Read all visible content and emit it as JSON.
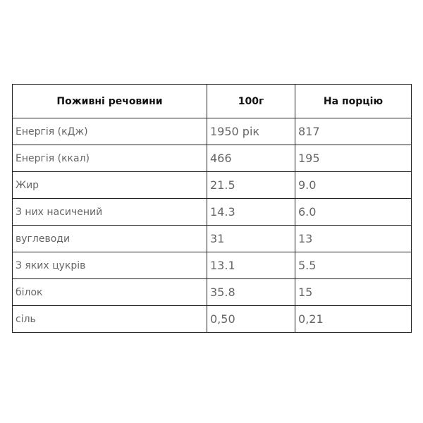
{
  "table": {
    "headers": [
      "Поживні речовини",
      "100г",
      "На порцію"
    ],
    "rows": [
      [
        "Енергія (кДж)",
        "1950 рік",
        "817"
      ],
      [
        "Енергія (ккал)",
        "466",
        "195"
      ],
      [
        "Жир",
        "21.5",
        "9.0"
      ],
      [
        "З них насичений",
        "14.3",
        "6.0"
      ],
      [
        "вуглеводи",
        "31",
        "13"
      ],
      [
        "З яких цукрів",
        "13.1",
        "5.5"
      ],
      [
        "білок",
        "35.8",
        "15"
      ],
      [
        "сіль",
        "0,50",
        "0,21"
      ]
    ]
  }
}
